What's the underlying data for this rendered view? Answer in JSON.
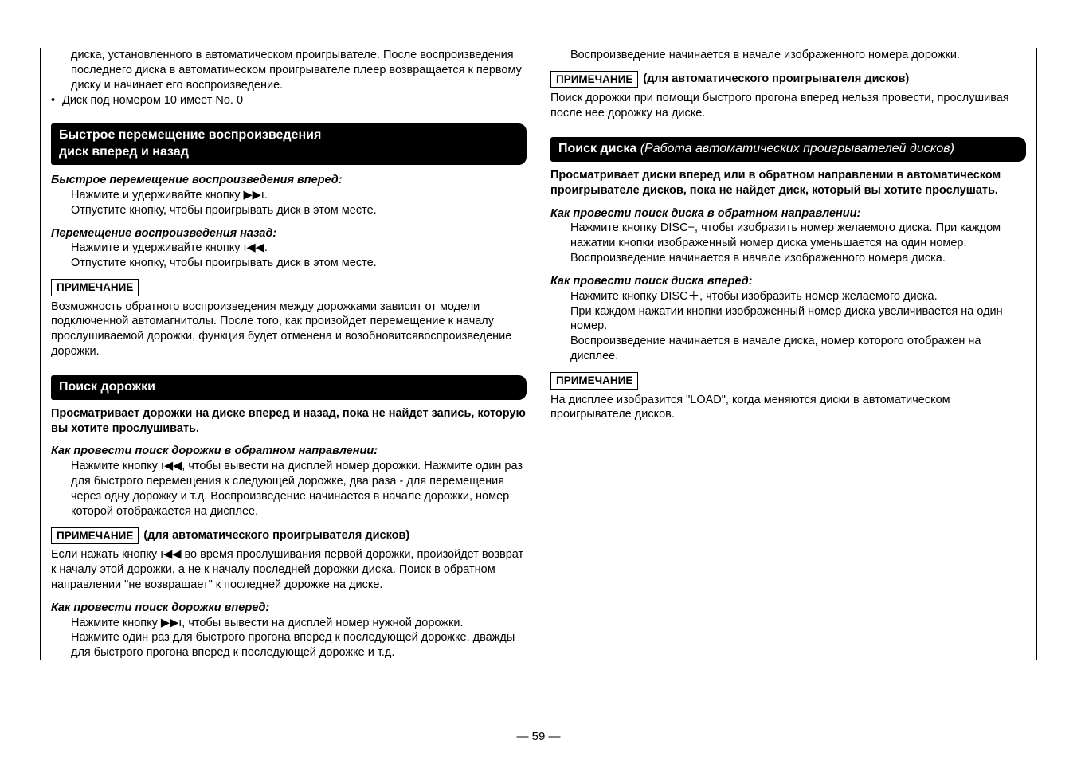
{
  "left": {
    "intro_lines": [
      "диска, установленного в автоматическом проигрывателе. После воспроизведения последнего диска в автоматическом проигрывателе плеер возвращается к первому диску и начинает его воспроизведение.",
      "Диск под номером 10 имеет No. 0"
    ],
    "bar1_line1": "Быстрое перемещение воспроизведения",
    "bar1_line2": "диск вперед и назад",
    "sub1": "Быстрое перемещение воспроизведения вперед:",
    "sub1_l1": "Нажмите и удерживайте кнопку ▶▶ı.",
    "sub1_l2": "Отпустите кнопку, чтобы проигрывать диск в этом месте.",
    "sub2": "Перемещение воспроизведения назад:",
    "sub2_l1": "Нажмите и удерживайте кнопку ı◀◀.",
    "sub2_l2": "Отпустите кнопку, чтобы проигрывать диск в этом месте.",
    "note1": "ПРИМЕЧАНИЕ",
    "note1_body": "Возможность обратного воспроизведения между дорожками зависит от модели подключенной автомагнитолы. После того, как произойдет перемещение к началу прослушиваемой дорожки, функция будет отменена и возобновитсявоспроизведение дорожки.",
    "bar2": "Поиск дорожки",
    "bar2_intro": "Просматривает дорожки на диске вперед и назад, пока не найдет запись, которую вы хотите прослушивать.",
    "sub3": "Как провести поиск дорожки в обратном направлении:",
    "sub3_body": "Нажмите кнопку ı◀◀, чтобы вывести на дисплей номер дорожки. Нажмите один раз для быстрого перемещения к следующей дорожке, два раза - для перемещения через одну дорожку и т.д. Воспроизведение начинается в начале дорожки, номер которой отображается на дисплее.",
    "note2_label": "ПРИМЕЧАНИЕ",
    "note2_title": "(для автоматического проигрывателя дисков)",
    "note2_body": "Если нажать кнопку ı◀◀ во время прослушивания первой дорожки, произойдет возврат к началу этой дорожки, а не к началу последней дорожки диска. Поиск в обратном направлении \"не возвращает\" к последней дорожке на диске.",
    "sub4": "Как провести поиск дорожки вперед:",
    "sub4_l1": "Нажмите кнопку ▶▶ı, чтобы вывести на дисплей номер нужной дорожки.",
    "sub4_l2": "Нажмите один раз для быстрого прогона вперед к последующей дорожке, дважды для быстрого прогона вперед к последующей дорожке и т.д."
  },
  "right": {
    "top_l1": "Воспроизведение начинается в начале изображенного номера дорожки.",
    "note3_label": "ПРИМЕЧАНИЕ",
    "note3_title": "(для автоматического проигрывателя дисков)",
    "note3_body": "Поиск дорожки при помощи быстрого прогона вперед нельзя провести, прослушивая после нее дорожку на диске.",
    "bar3_a": "Поиск диска ",
    "bar3_b": "(Работа автоматических проигрывателей дисков)",
    "bar3_intro": "Просматривает диски вперед или в обратном направлении в автоматическом проигрывателе дисков, пока не найдет диск, который вы хотите прослушать.",
    "sub5": "Как провести поиск диска в обратном направлении:",
    "sub5_l1": "Нажмите кнопку DISC−, чтобы изобразить номер желаемого диска. При каждом нажатии кнопки изображенный номер диска уменьшается на один номер.",
    "sub5_l2": "Воспроизведение начинается в начале изображенного номера диска.",
    "sub6": "Как провести поиск диска вперед:",
    "sub6_l1": "Нажмите кнопку DISC＋, чтобы изобразить номер желаемого диска.",
    "sub6_l2": "При каждом нажатии кнопки изображенный номер диска увеличивается на один номер.",
    "sub6_l3": "Воспроизведение начинается в начале диска, номер которого отображен на дисплее.",
    "note4": "ПРИМЕЧАНИЕ",
    "note4_body": "На дисплее изобразится \"LOAD\", когда меняются диски в автоматическом проигрывателе дисков."
  },
  "page": "— 59 —"
}
